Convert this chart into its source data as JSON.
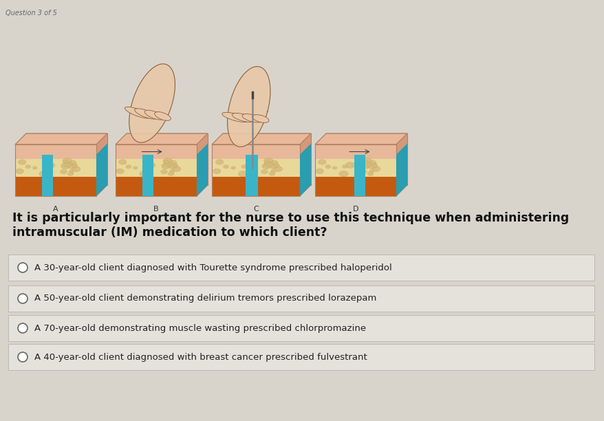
{
  "bg_color": "#d8d4cc",
  "question_label": "Question 3 of 5",
  "question_text": "It is particularly important for the nurse to use this technique when administering\nintramuscular (IM) medication to which client?",
  "options": [
    "A 30-year-old client diagnosed with Tourette syndrome prescribed haloperidol",
    "A 50-year-old client demonstrating delirium tremors prescribed lorazepam",
    "A 70-year-old demonstrating muscle wasting prescribed chlorpromazine",
    "A 40-year-old client diagnosed with breast cancer prescribed fulvestrant"
  ],
  "option_box_color": "#e5e2dc",
  "option_box_edge_color": "#bbb8b0",
  "option_text_color": "#222222",
  "question_text_color": "#111111",
  "label_color": "#666666",
  "image_labels": [
    "A",
    "B",
    "C",
    "D"
  ],
  "skin_pink": "#e8b89a",
  "skin_beige": "#d4b87a",
  "skin_cream": "#e8d89a",
  "muscle_orange": "#c45a10",
  "teal": "#3ab5c8",
  "box_edge": "#b08060"
}
